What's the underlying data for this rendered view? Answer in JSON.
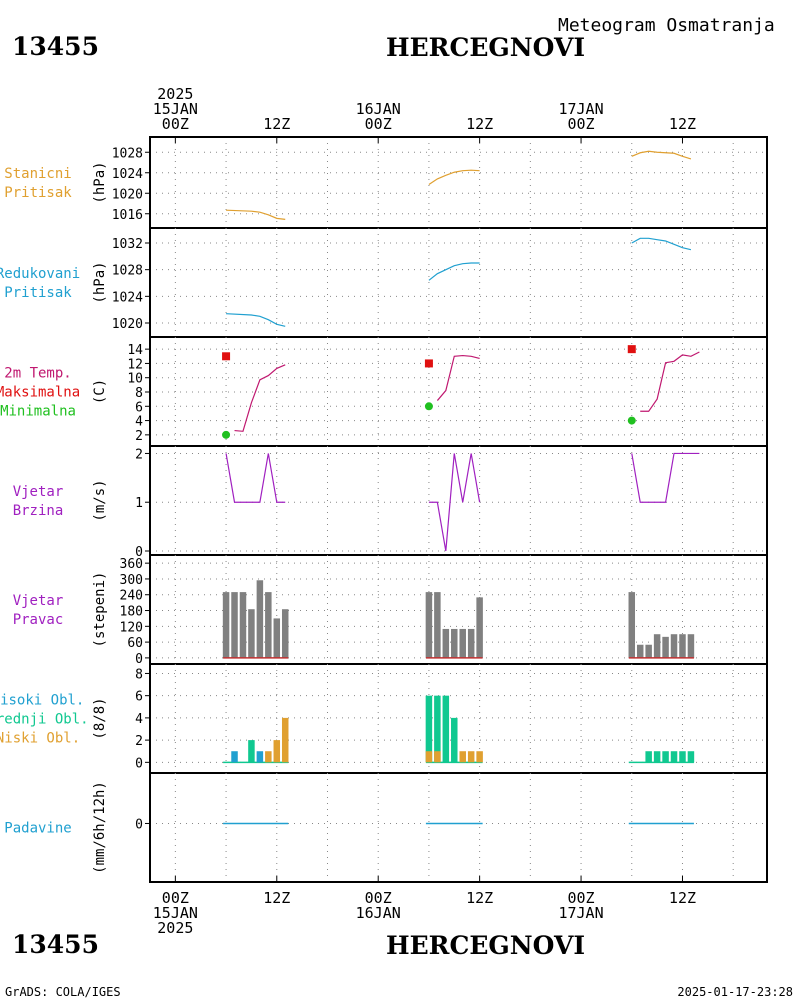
{
  "header": {
    "station_id": "13455",
    "station_name": "HERCEGNOVI",
    "product": "Meteogram Osmatranja",
    "footer_left": "GrADS: COLA/IGES",
    "footer_right": "2025-01-17-23:28"
  },
  "time_axis": {
    "top": [
      {
        "lines": [
          "2025",
          "15JAN",
          "00Z"
        ],
        "hour": 0
      },
      {
        "lines": [
          "12Z"
        ],
        "hour": 12
      },
      {
        "lines": [
          "16JAN",
          "00Z"
        ],
        "hour": 24
      },
      {
        "lines": [
          "12Z"
        ],
        "hour": 36
      },
      {
        "lines": [
          "17JAN",
          "00Z"
        ],
        "hour": 48
      },
      {
        "lines": [
          "12Z"
        ],
        "hour": 60
      }
    ],
    "bottom": [
      {
        "lines": [
          "00Z",
          "15JAN",
          "2025"
        ],
        "hour": 0
      },
      {
        "lines": [
          "12Z"
        ],
        "hour": 12
      },
      {
        "lines": [
          "00Z",
          "16JAN"
        ],
        "hour": 24
      },
      {
        "lines": [
          "12Z"
        ],
        "hour": 36
      },
      {
        "lines": [
          "00Z",
          "17JAN"
        ],
        "hour": 48
      },
      {
        "lines": [
          "12Z"
        ],
        "hour": 60
      }
    ],
    "hour_range": [
      -3,
      70
    ]
  },
  "chart_data": [
    {
      "type": "line",
      "panel": "station-pressure",
      "labels": [
        {
          "text": "Stanicni",
          "color": "#e0a030"
        },
        {
          "text": "Pritisak",
          "color": "#e0a030"
        }
      ],
      "unit": "(hPa)",
      "yticks": [
        1016,
        1020,
        1024,
        1028
      ],
      "ylim": [
        1014,
        1030
      ],
      "grid": true,
      "series": [
        {
          "color": "#e0a030",
          "x": [
            6,
            9,
            10,
            11,
            12,
            13
          ],
          "values": [
            1016.7,
            1016.5,
            1016.3,
            1015.8,
            1015.1,
            1014.9
          ]
        },
        {
          "color": "#e0a030",
          "x": [
            30,
            31,
            32,
            33,
            34,
            35,
            36
          ],
          "values": [
            1021.7,
            1022.8,
            1023.5,
            1024.1,
            1024.4,
            1024.5,
            1024.4
          ]
        },
        {
          "color": "#e0a030",
          "x": [
            54,
            55,
            56,
            57,
            58,
            59,
            60,
            61
          ],
          "values": [
            1027.2,
            1027.9,
            1028.2,
            1028.0,
            1027.9,
            1027.8,
            1027.2,
            1026.7
          ]
        }
      ]
    },
    {
      "type": "line",
      "panel": "reduced-pressure",
      "labels": [
        {
          "text": "Redukovani",
          "color": "#20a0d0"
        },
        {
          "text": "Pritisak",
          "color": "#20a0d0"
        }
      ],
      "unit": "(hPa)",
      "yticks": [
        1020,
        1024,
        1028,
        1032
      ],
      "ylim": [
        1018.5,
        1033.5
      ],
      "grid": true,
      "series": [
        {
          "color": "#20a0d0",
          "x": [
            6,
            9,
            10,
            11,
            12,
            13
          ],
          "values": [
            1021.4,
            1021.2,
            1021.0,
            1020.5,
            1019.8,
            1019.5
          ]
        },
        {
          "color": "#20a0d0",
          "x": [
            30,
            31,
            32,
            33,
            34,
            35,
            36
          ],
          "values": [
            1026.4,
            1027.4,
            1028.0,
            1028.6,
            1028.9,
            1029.0,
            1029.0
          ]
        },
        {
          "color": "#20a0d0",
          "x": [
            54,
            55,
            56,
            57,
            58,
            59,
            60,
            61
          ],
          "values": [
            1032.0,
            1032.7,
            1032.7,
            1032.5,
            1032.3,
            1031.8,
            1031.3,
            1031.0
          ]
        }
      ]
    },
    {
      "type": "line",
      "panel": "temperature",
      "labels": [
        {
          "text": "2m Temp.",
          "color": "#c01870"
        },
        {
          "text": "Maksimalna",
          "color": "#e01010"
        },
        {
          "text": "Minimalna",
          "color": "#20c020"
        }
      ],
      "unit": "(C)",
      "yticks": [
        2,
        4,
        6,
        8,
        10,
        12,
        14
      ],
      "ylim": [
        1,
        15
      ],
      "grid": true,
      "series": [
        {
          "color": "#c01870",
          "x": [
            7,
            8,
            9,
            10,
            11,
            12,
            13
          ],
          "values": [
            2.6,
            2.5,
            6.5,
            9.7,
            10.3,
            11.3,
            11.8
          ]
        },
        {
          "color": "#c01870",
          "x": [
            31,
            32,
            33,
            34,
            35,
            36
          ],
          "values": [
            6.8,
            8.2,
            13.0,
            13.1,
            13.0,
            12.7
          ]
        },
        {
          "color": "#c01870",
          "x": [
            55,
            56,
            57,
            58,
            59,
            60,
            61,
            62
          ],
          "values": [
            5.3,
            5.3,
            7.0,
            12.1,
            12.3,
            13.2,
            13.0,
            13.6
          ]
        }
      ],
      "max_points": [
        {
          "x": 6,
          "value": 13.0
        },
        {
          "x": 30,
          "value": 12.0
        },
        {
          "x": 54,
          "value": 14.0
        }
      ],
      "min_points": [
        {
          "x": 6,
          "value": 2.0
        },
        {
          "x": 30,
          "value": 6.0
        },
        {
          "x": 54,
          "value": 4.0
        }
      ]
    },
    {
      "type": "line",
      "panel": "wind-speed",
      "labels": [
        {
          "text": "Vjetar",
          "color": "#a020c0"
        },
        {
          "text": "Brzina",
          "color": "#a020c0"
        }
      ],
      "unit": "(m/s)",
      "yticks": [
        0,
        1,
        2
      ],
      "ylim": [
        0,
        2.05
      ],
      "grid": true,
      "series": [
        {
          "color": "#a020c0",
          "x": [
            6,
            7,
            8,
            9,
            10,
            11,
            12,
            13
          ],
          "values": [
            2,
            1,
            1,
            1,
            1,
            2,
            1,
            1
          ]
        },
        {
          "color": "#a020c0",
          "x": [
            30,
            31,
            32,
            33,
            34,
            35,
            36
          ],
          "values": [
            1,
            1,
            0,
            2,
            1,
            2,
            1
          ]
        },
        {
          "color": "#a020c0",
          "x": [
            54,
            55,
            56,
            57,
            58,
            59,
            60,
            61,
            62
          ],
          "values": [
            2,
            1,
            1,
            1,
            1,
            2,
            2,
            2,
            2
          ]
        }
      ]
    },
    {
      "type": "bar",
      "panel": "wind-direction",
      "labels": [
        {
          "text": "Vjetar",
          "color": "#a020c0"
        },
        {
          "text": "Pravac",
          "color": "#a020c0"
        }
      ],
      "unit": "(stepeni)",
      "yticks": [
        0,
        60,
        120,
        180,
        240,
        300,
        360
      ],
      "ylim": [
        -8,
        372
      ],
      "grid": true,
      "series": [
        {
          "name": "smjer",
          "color": "#808080",
          "x": [
            6,
            7,
            8,
            9,
            10,
            11,
            12,
            13
          ],
          "values": [
            250,
            250,
            250,
            185,
            295,
            250,
            150,
            185
          ]
        },
        {
          "name": "smjer",
          "color": "#808080",
          "x": [
            30,
            31,
            32,
            33,
            34,
            35,
            36
          ],
          "values": [
            250,
            250,
            110,
            110,
            110,
            110,
            230
          ]
        },
        {
          "name": "smjer",
          "color": "#808080",
          "x": [
            54,
            55,
            56,
            57,
            58,
            59,
            60,
            61
          ],
          "values": [
            250,
            50,
            50,
            90,
            80,
            90,
            90,
            90
          ]
        }
      ],
      "baseline_color": "#c03030"
    },
    {
      "type": "bar",
      "panel": "cloud-cover",
      "labels": [
        {
          "text": "Visoki Obl.",
          "color": "#20a0d0"
        },
        {
          "text": "Srednji Obl.",
          "color": "#10c890"
        },
        {
          "text": "Niski Obl.",
          "color": "#e0a030"
        }
      ],
      "unit": "(8/8)",
      "yticks": [
        0,
        2,
        4,
        6,
        8
      ],
      "ylim": [
        -0.6,
        8.4
      ],
      "grid": true,
      "series": [
        {
          "color": "#20a0d0",
          "x": [
            7,
            10
          ],
          "values": [
            1,
            1
          ]
        },
        {
          "color": "#10c890",
          "x": [
            9,
            30,
            31,
            32,
            33,
            56,
            57,
            58,
            59,
            60,
            61
          ],
          "values": [
            2,
            6,
            6,
            6,
            4,
            1,
            1,
            1,
            1,
            1,
            1
          ]
        },
        {
          "color": "#e0a030",
          "x": [
            11,
            12,
            13,
            30,
            31,
            34,
            35,
            36
          ],
          "values": [
            1,
            2,
            4,
            1,
            1,
            1,
            1,
            1
          ]
        }
      ],
      "baseline_segments": [
        [
          6,
          13
        ],
        [
          30,
          36
        ],
        [
          54,
          61
        ]
      ]
    },
    {
      "type": "bar",
      "panel": "precipitation",
      "labels": [
        {
          "text": "Padavine",
          "color": "#20a0d0"
        }
      ],
      "unit": "(mm/6h/12h)",
      "yticks": [
        0
      ],
      "ylim": [
        -6,
        5
      ],
      "grid": true,
      "baseline_color": "#20a0d0",
      "baseline_segments": [
        [
          6,
          13
        ],
        [
          30,
          36
        ],
        [
          54,
          61
        ]
      ]
    }
  ]
}
